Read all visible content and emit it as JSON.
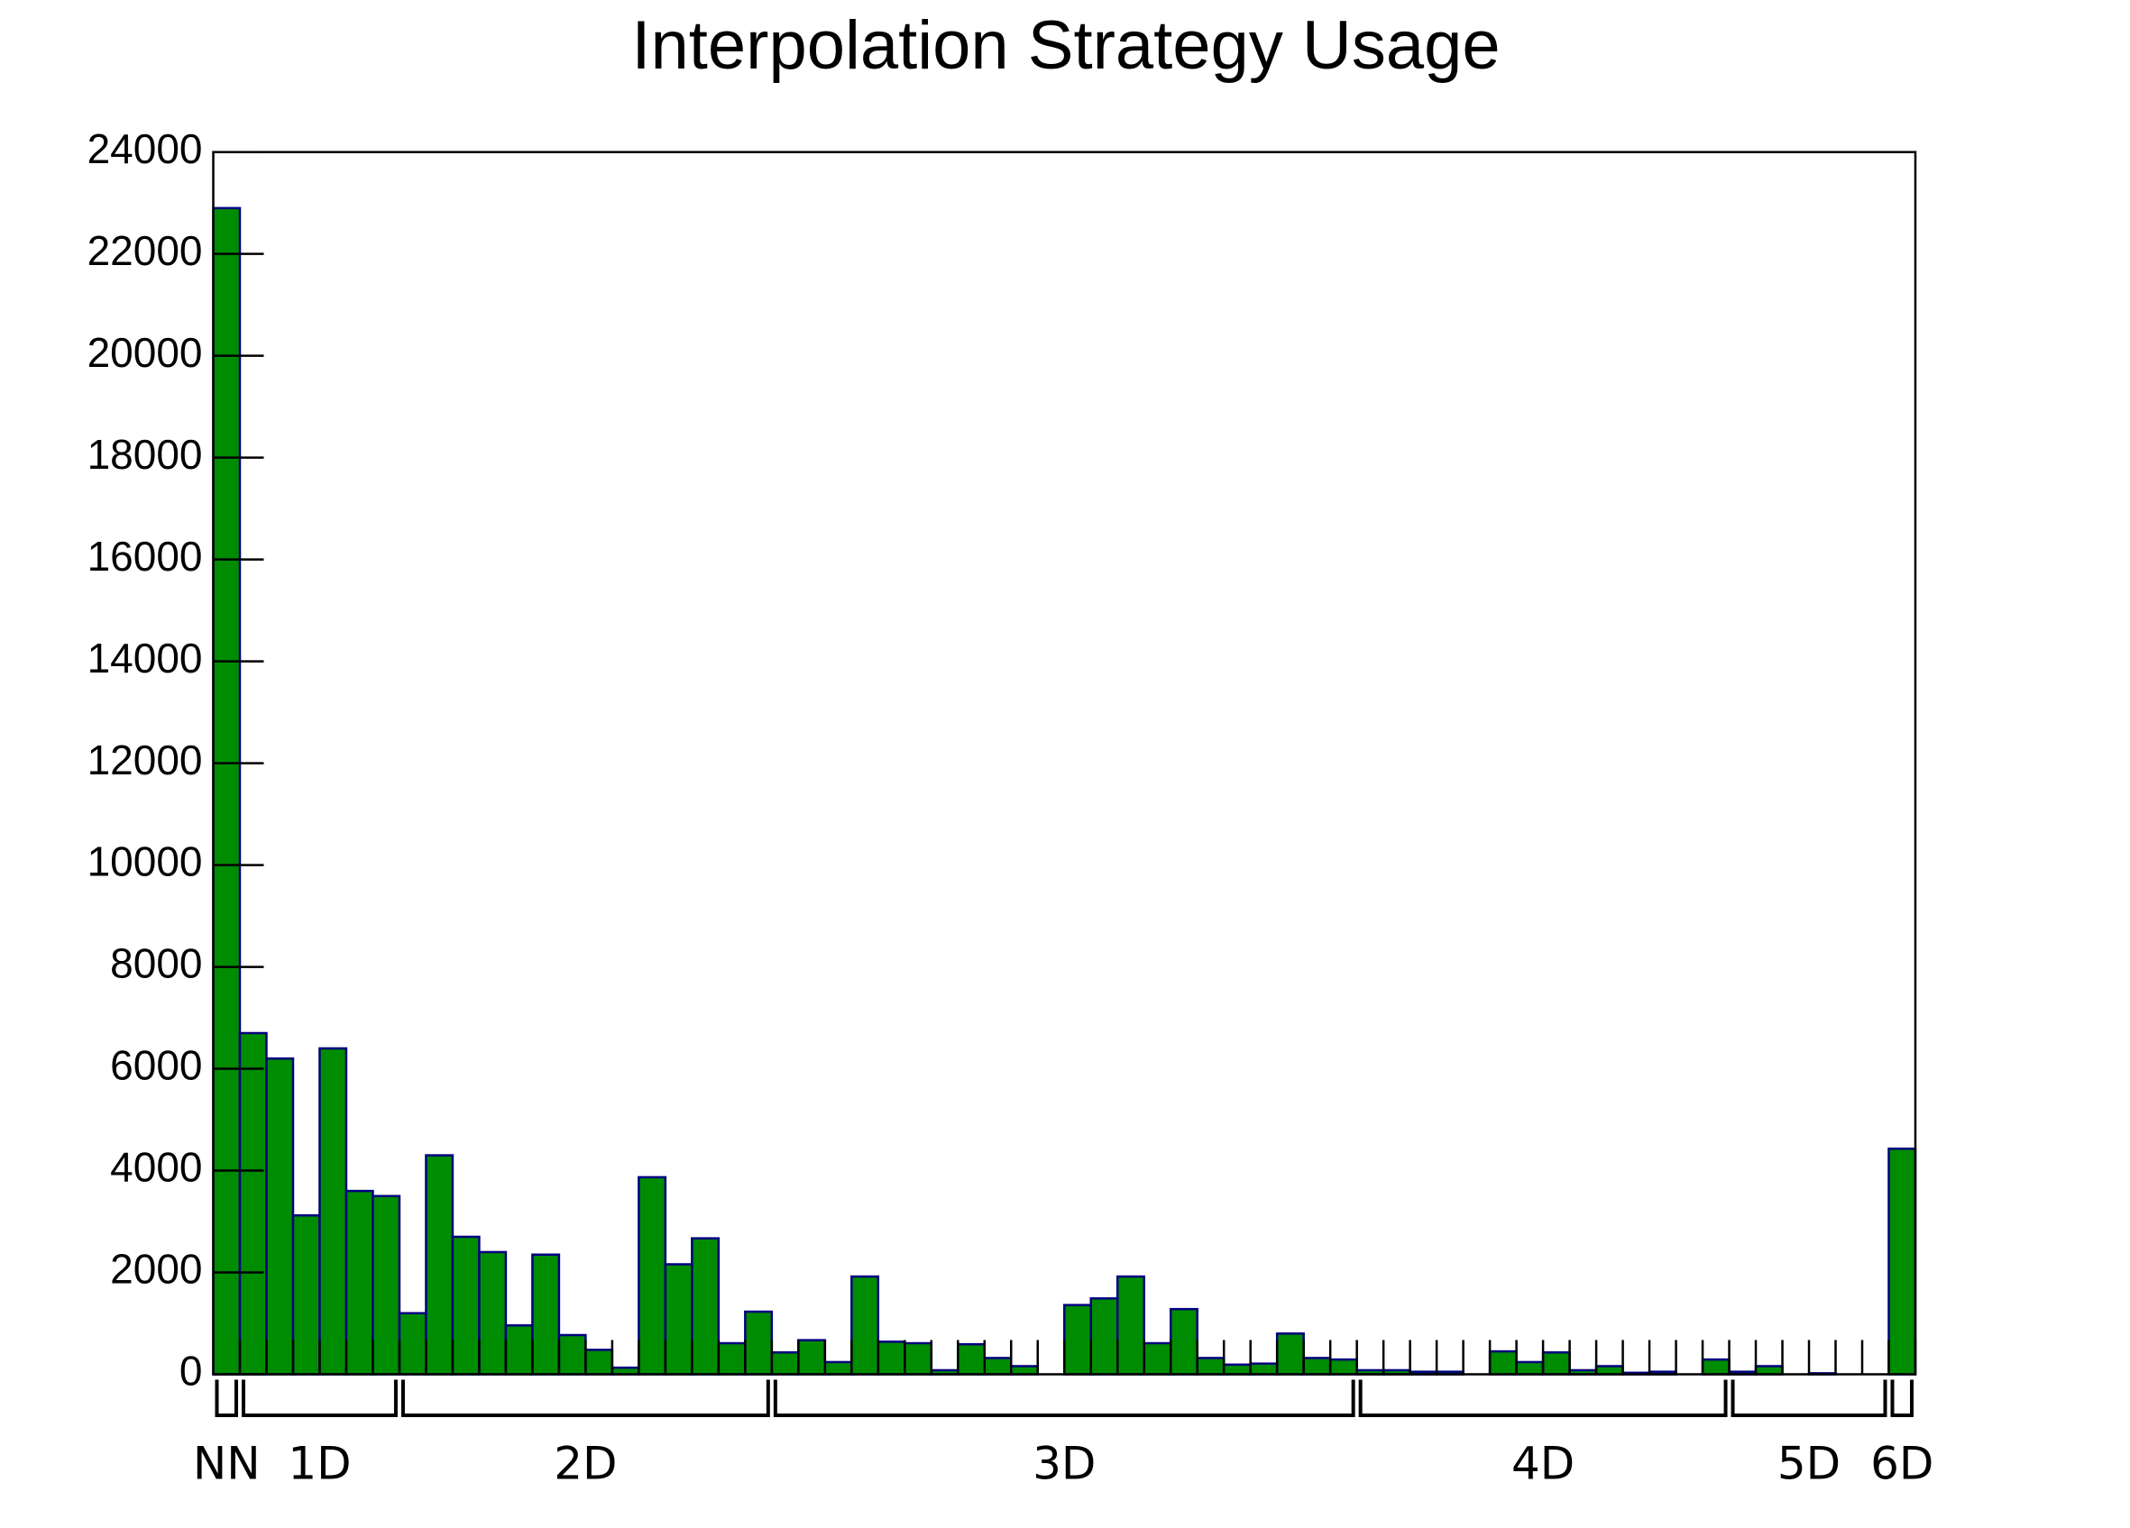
{
  "chart_data": {
    "type": "bar",
    "title": "Interpolation Strategy Usage",
    "categories": [
      null,
      null,
      null,
      null,
      null,
      null,
      null,
      null,
      null,
      null,
      null,
      null,
      null,
      null,
      null,
      null,
      null,
      null,
      null,
      null,
      null,
      null,
      null,
      null,
      null,
      null,
      null,
      null,
      null,
      null,
      null,
      null,
      null,
      null,
      null,
      null,
      null,
      null,
      null,
      null,
      null,
      null,
      null,
      null,
      null,
      null,
      null,
      null,
      null,
      null,
      null,
      null,
      null,
      null,
      null,
      null,
      null,
      null,
      null,
      null,
      null,
      null,
      null,
      null
    ],
    "values": [
      22900,
      6700,
      6200,
      3120,
      6400,
      3600,
      3500,
      1200,
      4300,
      2700,
      2400,
      960,
      2350,
      770,
      480,
      130,
      3870,
      2160,
      2670,
      610,
      1230,
      430,
      670,
      240,
      1920,
      640,
      610,
      80,
      590,
      320,
      160,
      0,
      1360,
      1490,
      1920,
      610,
      1280,
      320,
      190,
      210,
      800,
      320,
      290,
      80,
      80,
      50,
      50,
      0,
      450,
      240,
      430,
      80,
      160,
      30,
      50,
      0,
      290,
      50,
      160,
      0,
      20,
      0,
      0,
      4430
    ],
    "color": "#008c00",
    "edge_color": "#000080",
    "groups": [
      {
        "label": "NN",
        "size": 1
      },
      {
        "label": "1D",
        "size": 6
      },
      {
        "label": "2D",
        "size": 14
      },
      {
        "label": "3D",
        "size": 22
      },
      {
        "label": "4D",
        "size": 14
      },
      {
        "label": "5D",
        "size": 6
      },
      {
        "label": "6D",
        "size": 1
      }
    ],
    "ylim": [
      0,
      24000
    ],
    "yticks": [
      0,
      2000,
      4000,
      6000,
      8000,
      10000,
      12000,
      14000,
      16000,
      18000,
      20000,
      22000,
      24000
    ],
    "grid": false
  }
}
